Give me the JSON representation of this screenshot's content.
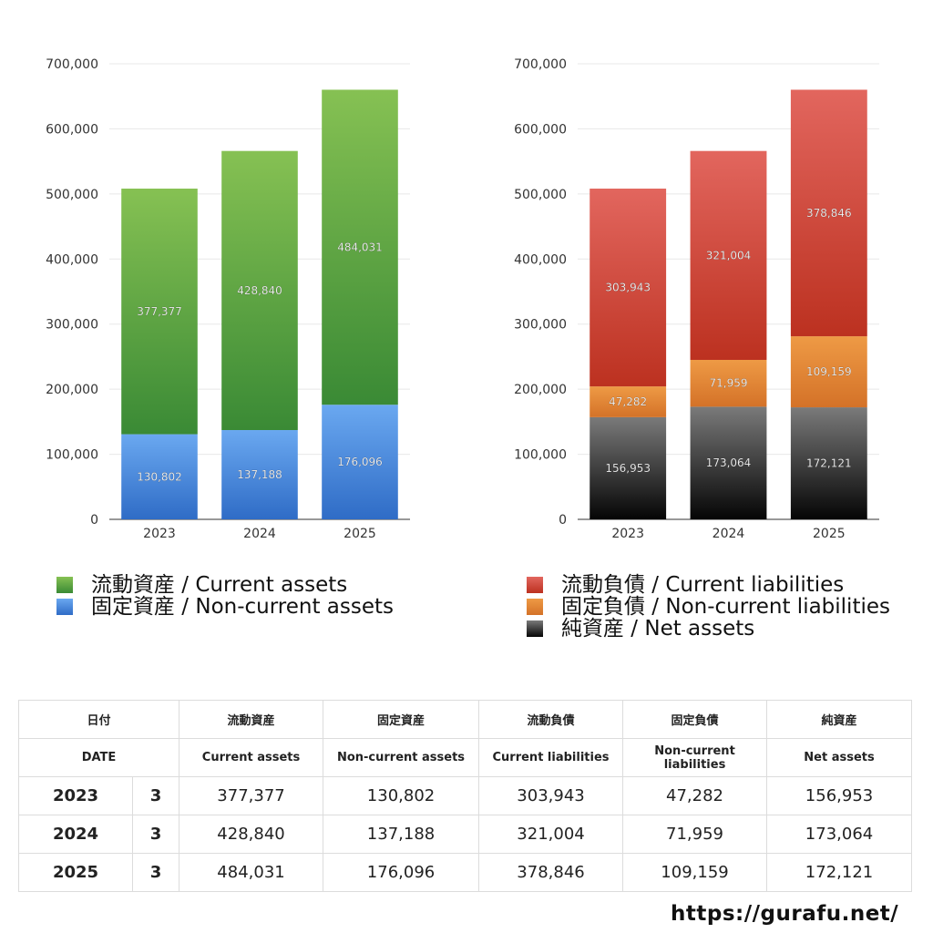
{
  "chart_data": [
    {
      "type": "bar",
      "stacked": true,
      "categories": [
        "2023",
        "2024",
        "2025"
      ],
      "series": [
        {
          "name": "固定資産 / Non-current assets",
          "values": [
            130802,
            137188,
            176096
          ],
          "labels": [
            "130,802",
            "137,188",
            "176,096"
          ],
          "color_top": "#6aa8f0",
          "color_bottom": "#2f6cc6"
        },
        {
          "name": "流動資産 / Current assets",
          "values": [
            377377,
            428840,
            484031
          ],
          "labels": [
            "377,377",
            "428,840",
            "484,031"
          ],
          "color_top": "#86c153",
          "color_bottom": "#3a8a35"
        }
      ],
      "ylim": [
        0,
        700000
      ],
      "yticks": [
        "0",
        "100,000",
        "200,000",
        "300,000",
        "400,000",
        "500,000",
        "600,000",
        "700,000"
      ],
      "grid": true,
      "legend_position": "bottom"
    },
    {
      "type": "bar",
      "stacked": true,
      "categories": [
        "2023",
        "2024",
        "2025"
      ],
      "series": [
        {
          "name": "純資産 / Net assets",
          "values": [
            156953,
            173064,
            172121
          ],
          "labels": [
            "156,953",
            "173,064",
            "172,121"
          ],
          "color_top": "#7a7a7a",
          "color_bottom": "#050505"
        },
        {
          "name": "固定負債 / Non-current liabilities",
          "values": [
            47282,
            71959,
            109159
          ],
          "labels": [
            "47,282",
            "71,959",
            "109,159"
          ],
          "color_top": "#ee9a45",
          "color_bottom": "#d47228"
        },
        {
          "name": "流動負債 / Current liabilities",
          "values": [
            303943,
            321004,
            378846
          ],
          "labels": [
            "303,943",
            "321,004",
            "378,846"
          ],
          "color_top": "#e2665e",
          "color_bottom": "#bc3120"
        }
      ],
      "ylim": [
        0,
        700000
      ],
      "yticks": [
        "0",
        "100,000",
        "200,000",
        "300,000",
        "400,000",
        "500,000",
        "600,000",
        "700,000"
      ],
      "grid": true,
      "legend_position": "bottom"
    }
  ],
  "legend_left": [
    {
      "label": "流動資産 / Current assets",
      "color": "#4f9e3b"
    },
    {
      "label": "固定資産 / Non-current assets",
      "color": "#3f84dc"
    }
  ],
  "legend_right": [
    {
      "label": "流動負債 / Current liabilities",
      "color": "#d0453a"
    },
    {
      "label": "固定負債 / Non-current liabilities",
      "color": "#e38435"
    },
    {
      "label": "純資産 / Net assets",
      "color": "#2a2a2a"
    }
  ],
  "table": {
    "header_jp": [
      "日付",
      "流動資産",
      "固定資産",
      "流動負債",
      "固定負債",
      "純資産"
    ],
    "header_en": [
      "DATE",
      "Current assets",
      "Non-current assets",
      "Current liabilities",
      "Non-current liabilities",
      "Net assets"
    ],
    "rows": [
      {
        "year": "2023",
        "month": "3",
        "values": [
          "377,377",
          "130,802",
          "303,943",
          "47,282",
          "156,953"
        ]
      },
      {
        "year": "2024",
        "month": "3",
        "values": [
          "428,840",
          "137,188",
          "321,004",
          "71,959",
          "173,064"
        ]
      },
      {
        "year": "2025",
        "month": "3",
        "values": [
          "484,031",
          "176,096",
          "378,846",
          "109,159",
          "172,121"
        ]
      }
    ]
  },
  "footer": {
    "url": "https://gurafu.net/"
  }
}
